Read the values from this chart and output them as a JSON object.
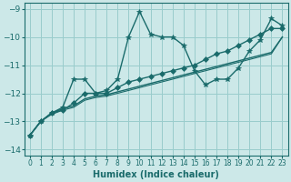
{
  "xlabel": "Humidex (Indice chaleur)",
  "ylabel": "",
  "background_color": "#cce8e8",
  "grid_color": "#99cccc",
  "line_color": "#1a6b6b",
  "xlim": [
    -0.5,
    23.5
  ],
  "ylim": [
    -14.2,
    -8.8
  ],
  "yticks": [
    -9,
    -10,
    -11,
    -12,
    -13,
    -14
  ],
  "xticks": [
    0,
    1,
    2,
    3,
    4,
    5,
    6,
    7,
    8,
    9,
    10,
    11,
    12,
    13,
    14,
    15,
    16,
    17,
    18,
    19,
    20,
    21,
    22,
    23
  ],
  "series": [
    {
      "x": [
        0,
        1,
        2,
        3,
        4,
        5,
        6,
        7,
        8,
        9,
        10,
        11,
        12,
        13,
        14,
        15,
        16,
        17,
        18,
        19,
        20,
        21,
        22,
        23
      ],
      "y": [
        -13.5,
        -13.0,
        -12.7,
        -12.5,
        -11.5,
        -11.5,
        -12.0,
        -11.9,
        -11.5,
        -10.0,
        -9.1,
        -9.9,
        -10.0,
        -10.0,
        -10.3,
        -11.2,
        -11.7,
        -11.5,
        -11.5,
        -11.1,
        -10.5,
        -10.1,
        -9.35,
        -9.6
      ],
      "marker": "*",
      "linewidth": 1.0,
      "markersize": 4
    },
    {
      "x": [
        0,
        1,
        2,
        3,
        4,
        5,
        6,
        7,
        8,
        9,
        10,
        11,
        12,
        13,
        14,
        15,
        16,
        17,
        18,
        19,
        20,
        21,
        22,
        23
      ],
      "y": [
        -13.5,
        -13.0,
        -12.7,
        -12.6,
        -12.35,
        -12.0,
        -12.0,
        -12.0,
        -11.8,
        -11.6,
        -11.5,
        -11.4,
        -11.3,
        -11.2,
        -11.1,
        -11.0,
        -10.8,
        -10.6,
        -10.5,
        -10.3,
        -10.1,
        -9.9,
        -9.7,
        -9.7
      ],
      "marker": "D",
      "linewidth": 1.0,
      "markersize": 3
    },
    {
      "x": [
        0,
        1,
        2,
        3,
        4,
        5,
        6,
        7,
        8,
        9,
        10,
        11,
        12,
        13,
        14,
        15,
        16,
        17,
        18,
        19,
        20,
        21,
        22,
        23
      ],
      "y": [
        -13.5,
        -13.0,
        -12.7,
        -12.55,
        -12.45,
        -12.2,
        -12.1,
        -12.05,
        -11.95,
        -11.85,
        -11.75,
        -11.65,
        -11.55,
        -11.45,
        -11.35,
        -11.25,
        -11.15,
        -11.05,
        -10.95,
        -10.85,
        -10.75,
        -10.65,
        -10.55,
        -10.0
      ],
      "marker": null,
      "linewidth": 1.0,
      "markersize": 0
    },
    {
      "x": [
        0,
        1,
        2,
        3,
        4,
        5,
        6,
        7,
        8,
        9,
        10,
        11,
        12,
        13,
        14,
        15,
        16,
        17,
        18,
        19,
        20,
        21,
        22,
        23
      ],
      "y": [
        -13.5,
        -13.0,
        -12.75,
        -12.6,
        -12.5,
        -12.25,
        -12.15,
        -12.1,
        -12.0,
        -11.9,
        -11.8,
        -11.7,
        -11.6,
        -11.5,
        -11.4,
        -11.3,
        -11.2,
        -11.1,
        -11.0,
        -10.9,
        -10.8,
        -10.7,
        -10.6,
        -10.0
      ],
      "marker": null,
      "linewidth": 0.8,
      "markersize": 0
    }
  ]
}
